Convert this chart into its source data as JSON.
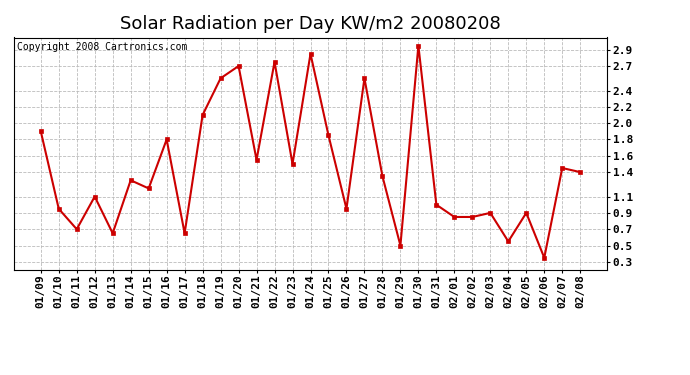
{
  "title": "Solar Radiation per Day KW/m2 20080208",
  "copyright": "Copyright 2008 Cartronics.com",
  "dates": [
    "01/09",
    "01/10",
    "01/11",
    "01/12",
    "01/13",
    "01/14",
    "01/15",
    "01/16",
    "01/17",
    "01/18",
    "01/19",
    "01/20",
    "01/21",
    "01/22",
    "01/23",
    "01/24",
    "01/25",
    "01/26",
    "01/27",
    "01/28",
    "01/29",
    "01/30",
    "01/31",
    "02/01",
    "02/02",
    "02/03",
    "02/04",
    "02/05",
    "02/06",
    "02/07",
    "02/08"
  ],
  "values": [
    1.9,
    0.95,
    0.7,
    1.1,
    0.65,
    1.3,
    1.2,
    1.8,
    0.65,
    2.1,
    2.55,
    2.7,
    1.55,
    2.75,
    1.5,
    2.85,
    1.85,
    0.95,
    2.55,
    1.35,
    0.5,
    2.95,
    1.0,
    0.85,
    0.85,
    0.9,
    0.55,
    0.9,
    0.35,
    1.45,
    1.4
  ],
  "line_color": "#cc0000",
  "marker_color": "#cc0000",
  "bg_color": "#ffffff",
  "plot_bg_color": "#ffffff",
  "grid_color": "#bbbbbb",
  "title_fontsize": 13,
  "copyright_fontsize": 7,
  "tick_fontsize": 8,
  "ylim": [
    0.2,
    3.05
  ],
  "yticks": [
    0.3,
    0.5,
    0.7,
    0.9,
    1.1,
    1.4,
    1.6,
    1.8,
    2.0,
    2.2,
    2.4,
    2.7,
    2.9
  ]
}
